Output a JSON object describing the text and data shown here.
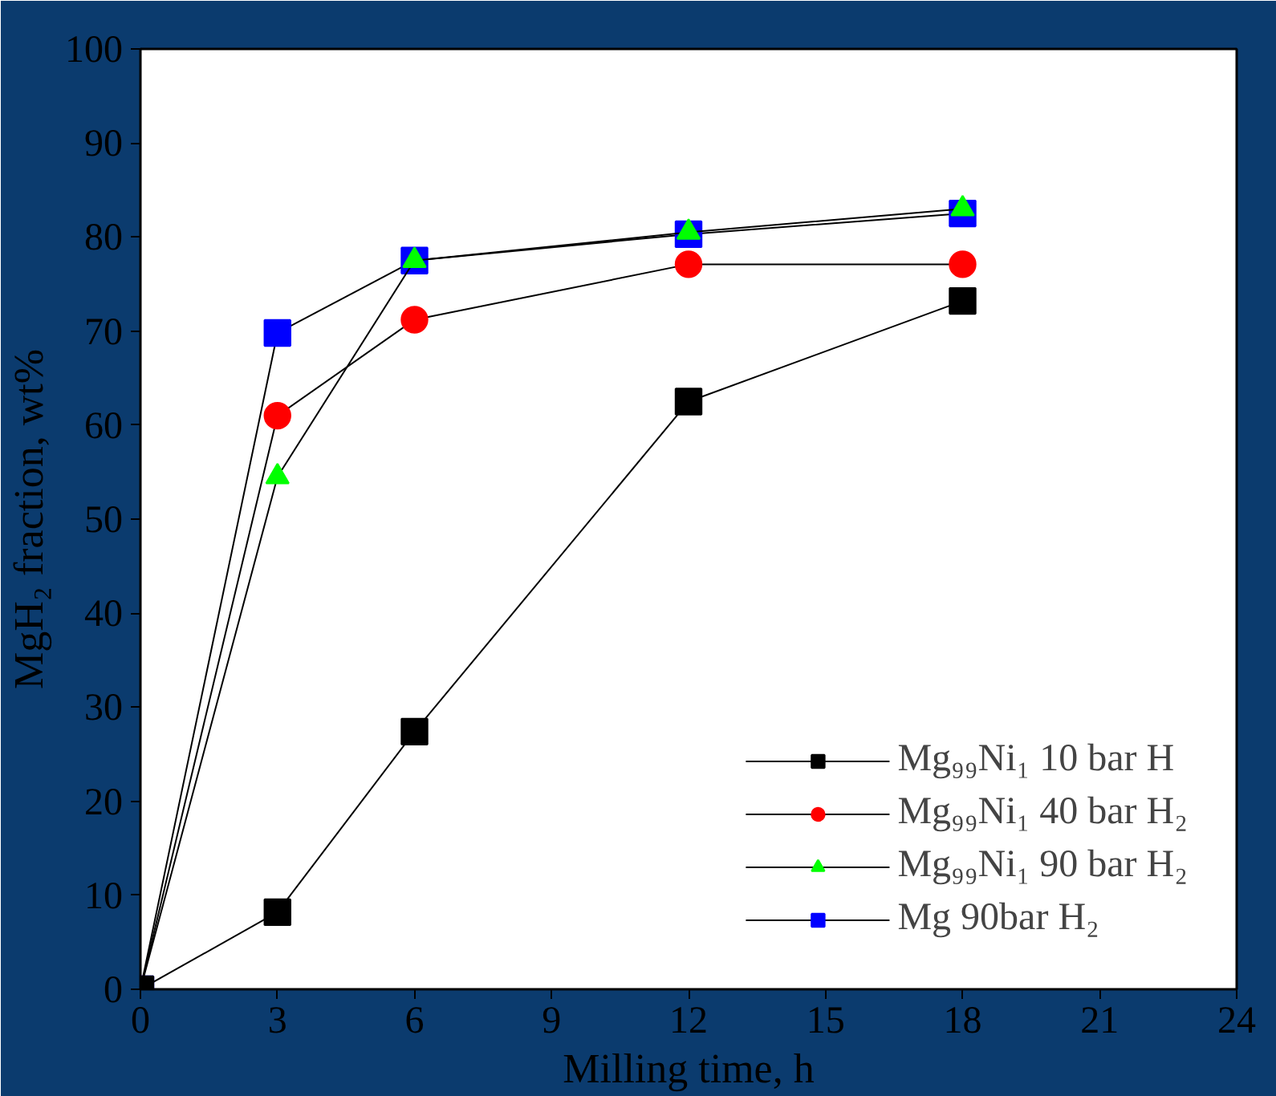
{
  "chart_data": {
    "type": "line",
    "xlabel": "Milling time, h",
    "ylabel": "MgH₂ fraction, wt%",
    "xlim": [
      0,
      24
    ],
    "xticks": [
      0,
      3,
      6,
      9,
      12,
      15,
      18,
      21,
      24
    ],
    "ylim": [
      0,
      100
    ],
    "yticks": [
      0,
      10,
      20,
      30,
      40,
      50,
      60,
      70,
      80,
      90,
      100
    ],
    "grid": false,
    "legend": "bottom right",
    "line_style": "solid",
    "x": [
      0,
      3,
      6,
      12,
      18
    ],
    "series": [
      {
        "name": "Mg₉₉Ni₁ 10 bar H",
        "color": "#000000",
        "marker": "square",
        "values": [
          0,
          8.2,
          27.4,
          62.5,
          73.2
        ]
      },
      {
        "name": "Mg₉₉Ni₁ 40 bar H₂",
        "color": "#ff0000",
        "marker": "circle",
        "values": [
          0,
          61,
          71.2,
          77.1,
          77.1
        ]
      },
      {
        "name": "Mg₉₉Ni₁ 90 bar H₂",
        "color": "#00ff00",
        "marker": "triangle",
        "values": [
          0,
          54.5,
          77.5,
          80.5,
          83
        ]
      },
      {
        "name": "Mg 90bar H₂",
        "color": "#0000ff",
        "marker": "square",
        "values": [
          0,
          69.8,
          77.5,
          80.3,
          82.5
        ]
      }
    ]
  }
}
